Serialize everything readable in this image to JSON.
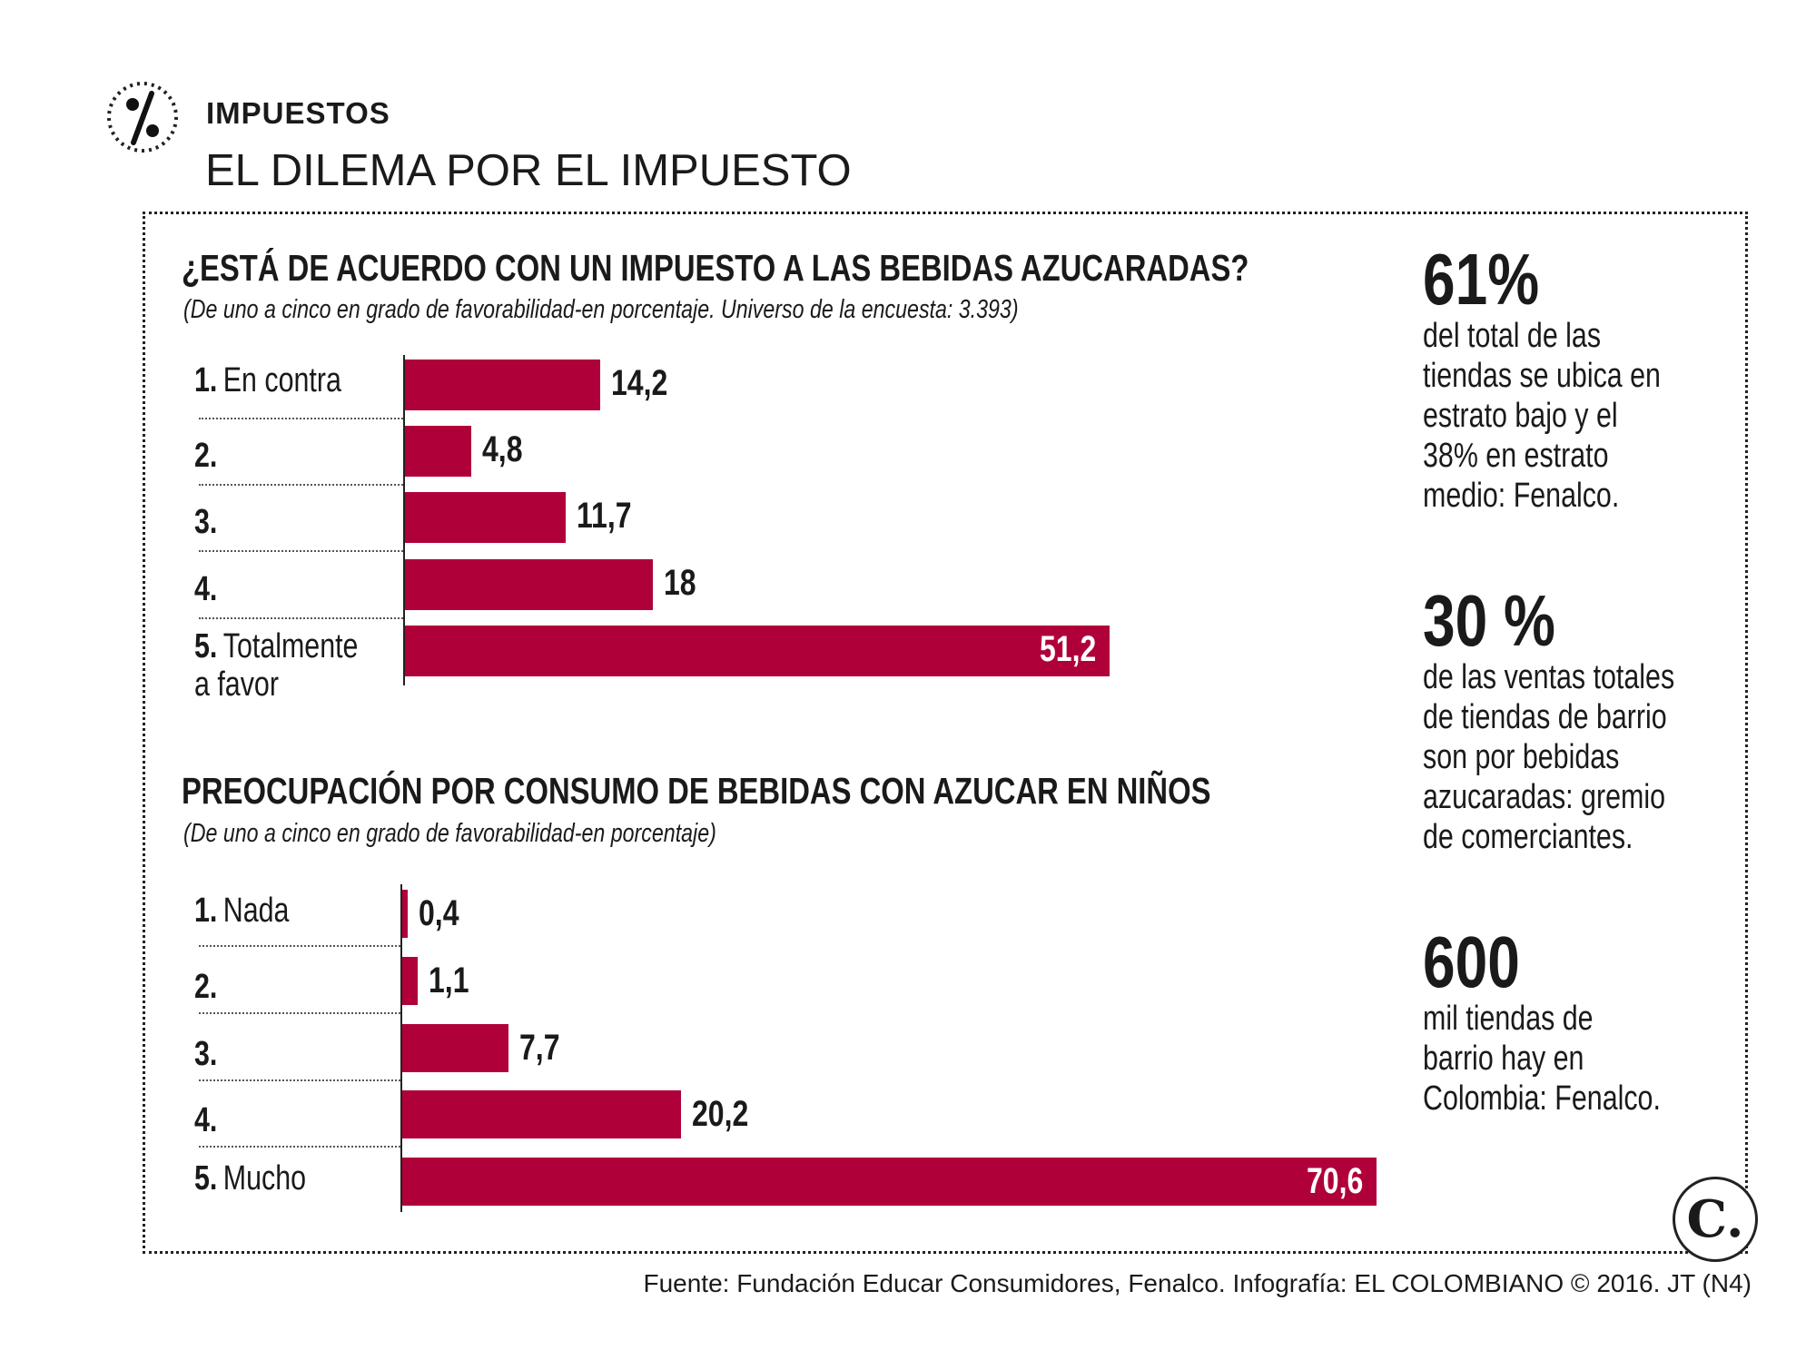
{
  "header": {
    "icon": "percent-icon",
    "kicker": "IMPUESTOS",
    "title": "EL DILEMA POR EL IMPUESTO"
  },
  "colors": {
    "bar": "#b0003a",
    "text": "#1a1a1a"
  },
  "chart_data": [
    {
      "type": "bar",
      "orientation": "horizontal",
      "title": "¿ESTÁ DE ACUERDO CON UN IMPUESTO A LAS BEBIDAS AZUCARADAS?",
      "subtitle": "(De uno a cinco en grado de favorabilidad-en porcentaje. Universo de la encuesta: 3.393)",
      "categories": [
        {
          "num": "1.",
          "label": "En contra"
        },
        {
          "num": "2.",
          "label": ""
        },
        {
          "num": "3.",
          "label": ""
        },
        {
          "num": "4.",
          "label": ""
        },
        {
          "num": "5.",
          "label": "Totalmente",
          "label2": "a favor"
        }
      ],
      "values": [
        14.2,
        4.8,
        11.7,
        18,
        51.2
      ],
      "value_labels": [
        "14,2",
        "4,8",
        "11,7",
        "18",
        "51,2"
      ]
    },
    {
      "type": "bar",
      "orientation": "horizontal",
      "title": "PREOCUPACIÓN POR CONSUMO DE BEBIDAS CON AZUCAR EN NIÑOS",
      "subtitle": "(De uno a cinco en grado de favorabilidad-en porcentaje)",
      "categories": [
        {
          "num": "1.",
          "label": "Nada"
        },
        {
          "num": "2.",
          "label": ""
        },
        {
          "num": "3.",
          "label": ""
        },
        {
          "num": "4.",
          "label": ""
        },
        {
          "num": "5.",
          "label": "Mucho"
        }
      ],
      "values": [
        0.4,
        1.1,
        7.7,
        20.2,
        70.6
      ],
      "value_labels": [
        "0,4",
        "1,1",
        "7,7",
        "20,2",
        "70,6"
      ]
    }
  ],
  "facts": [
    {
      "big": "61%",
      "lines": [
        "del total de las",
        "tiendas se ubica en",
        "estrato bajo y el",
        "38% en estrato",
        "medio: Fenalco."
      ]
    },
    {
      "big": "30 %",
      "lines": [
        "de las ventas totales",
        "de tiendas de barrio",
        "son por bebidas",
        "azucaradas: gremio",
        "de comerciantes."
      ]
    },
    {
      "big": "600",
      "lines": [
        "mil tiendas de",
        "barrio hay en",
        "Colombia: Fenalco."
      ]
    }
  ],
  "footer": "Fuente: Fundación Educar Consumidores, Fenalco. Infografía: EL COLOMBIANO © 2016. JT (N4)",
  "logo": {
    "icon": "el-colombiano-logo",
    "text": "C."
  }
}
